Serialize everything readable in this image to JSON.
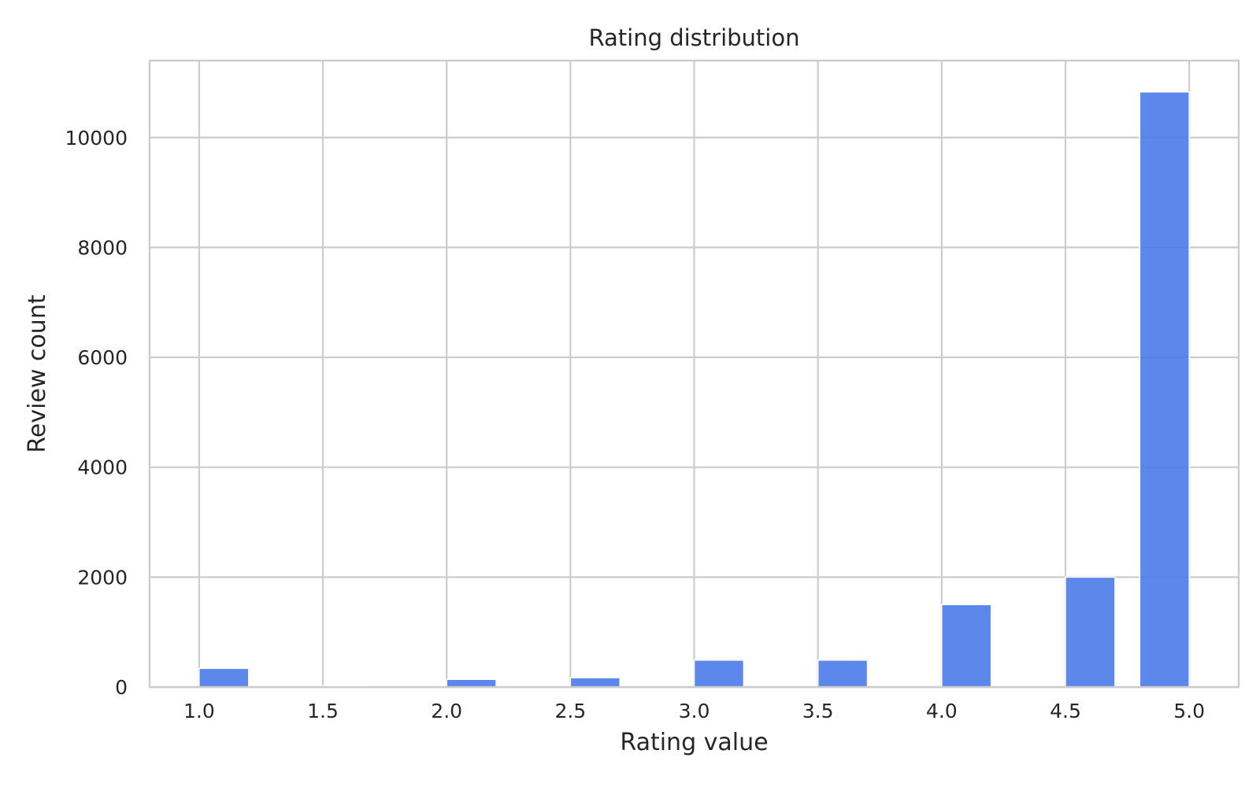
{
  "chart_data": {
    "type": "bar",
    "title": "Rating distribution",
    "xlabel": "Rating value",
    "ylabel": "Review count",
    "xlim": [
      0.8,
      5.2
    ],
    "ylim": [
      0,
      11400
    ],
    "x_ticks": [
      {
        "value": 1.0,
        "label": "1.0"
      },
      {
        "value": 1.5,
        "label": "1.5"
      },
      {
        "value": 2.0,
        "label": "2.0"
      },
      {
        "value": 2.5,
        "label": "2.5"
      },
      {
        "value": 3.0,
        "label": "3.0"
      },
      {
        "value": 3.5,
        "label": "3.5"
      },
      {
        "value": 4.0,
        "label": "4.0"
      },
      {
        "value": 4.5,
        "label": "4.5"
      },
      {
        "value": 5.0,
        "label": "5.0"
      }
    ],
    "y_ticks": [
      {
        "value": 0,
        "label": "0"
      },
      {
        "value": 2000,
        "label": "2000"
      },
      {
        "value": 4000,
        "label": "4000"
      },
      {
        "value": 6000,
        "label": "6000"
      },
      {
        "value": 8000,
        "label": "8000"
      },
      {
        "value": 10000,
        "label": "10000"
      }
    ],
    "bin_width": 0.2,
    "bins": [
      {
        "start": 1.0,
        "count": 340
      },
      {
        "start": 1.5,
        "count": 20
      },
      {
        "start": 2.0,
        "count": 140
      },
      {
        "start": 2.5,
        "count": 170
      },
      {
        "start": 3.0,
        "count": 490
      },
      {
        "start": 3.5,
        "count": 490
      },
      {
        "start": 4.0,
        "count": 1500
      },
      {
        "start": 4.5,
        "count": 2000
      },
      {
        "start": 4.8,
        "count": 10830
      }
    ],
    "grid": true,
    "legend": "none",
    "bar_color": "#4a7bea"
  }
}
